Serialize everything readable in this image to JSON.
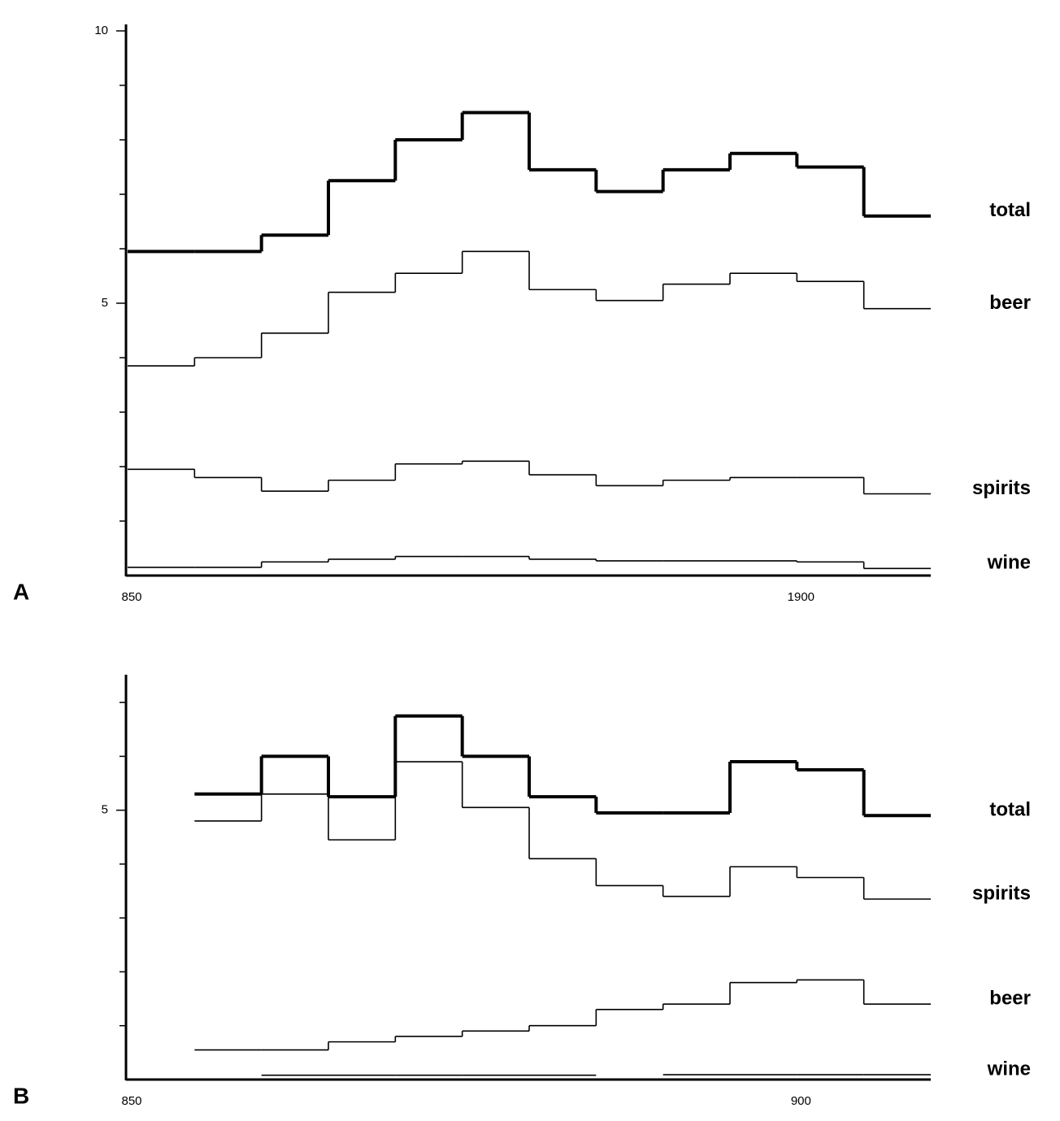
{
  "chart_data": [
    {
      "type": "step",
      "label": "A",
      "x": [
        1850,
        1855,
        1860,
        1865,
        1870,
        1875,
        1880,
        1885,
        1890,
        1895,
        1900,
        1905
      ],
      "xlim": [
        1850,
        1910
      ],
      "xticks": [
        {
          "value": 1850,
          "label": "850"
        },
        1900
      ],
      "ylim": [
        0,
        10
      ],
      "yticks": [
        5,
        10
      ],
      "minor_yticks": [
        1,
        2,
        3,
        4,
        6,
        7,
        8,
        9
      ],
      "series": [
        {
          "name": "total",
          "color": "#000000",
          "values": [
            5.95,
            5.95,
            6.25,
            7.25,
            8.0,
            8.5,
            7.45,
            7.05,
            7.45,
            7.75,
            7.5,
            6.6
          ]
        },
        {
          "name": "beer",
          "color": "#000000",
          "values": [
            3.85,
            4.0,
            4.45,
            5.2,
            5.55,
            5.95,
            5.25,
            5.05,
            5.35,
            5.55,
            5.4,
            4.9
          ]
        },
        {
          "name": "spirits",
          "color": "#000000",
          "values": [
            1.95,
            1.8,
            1.55,
            1.75,
            2.05,
            2.1,
            1.85,
            1.65,
            1.75,
            1.8,
            1.8,
            1.5
          ]
        },
        {
          "name": "wine",
          "color": "#000000",
          "values": [
            0.15,
            0.15,
            0.25,
            0.3,
            0.35,
            0.35,
            0.3,
            0.27,
            0.27,
            0.27,
            0.25,
            0.13
          ]
        }
      ]
    },
    {
      "type": "step",
      "label": "B",
      "x": [
        1855,
        1860,
        1865,
        1870,
        1875,
        1880,
        1885,
        1890,
        1895,
        1900,
        1905
      ],
      "xlim": [
        1850,
        1910
      ],
      "xticks": [
        {
          "value": 1850,
          "label": "850"
        },
        {
          "value": 1900,
          "label": "900"
        }
      ],
      "ylim": [
        0,
        7.5
      ],
      "yticks": [
        5
      ],
      "minor_yticks": [
        1,
        2,
        3,
        4,
        6,
        7
      ],
      "series": [
        {
          "name": "total",
          "color": "#000000",
          "values": [
            5.3,
            6.0,
            5.25,
            6.75,
            6.0,
            5.25,
            4.95,
            4.95,
            5.9,
            5.75,
            4.9
          ]
        },
        {
          "name": "spirits",
          "color": "#000000",
          "values": [
            4.8,
            5.3,
            4.45,
            5.9,
            5.05,
            4.1,
            3.6,
            3.4,
            3.95,
            3.75,
            3.35
          ]
        },
        {
          "name": "beer",
          "color": "#000000",
          "values": [
            0.55,
            0.55,
            0.7,
            0.8,
            0.9,
            1.0,
            1.3,
            1.4,
            1.8,
            1.85,
            1.4
          ]
        },
        {
          "name": "wine",
          "color": "#000000",
          "values": [
            null,
            0.08,
            0.08,
            0.08,
            0.08,
            0.08,
            null,
            0.09,
            0.09,
            0.09,
            0.09
          ]
        }
      ]
    }
  ]
}
